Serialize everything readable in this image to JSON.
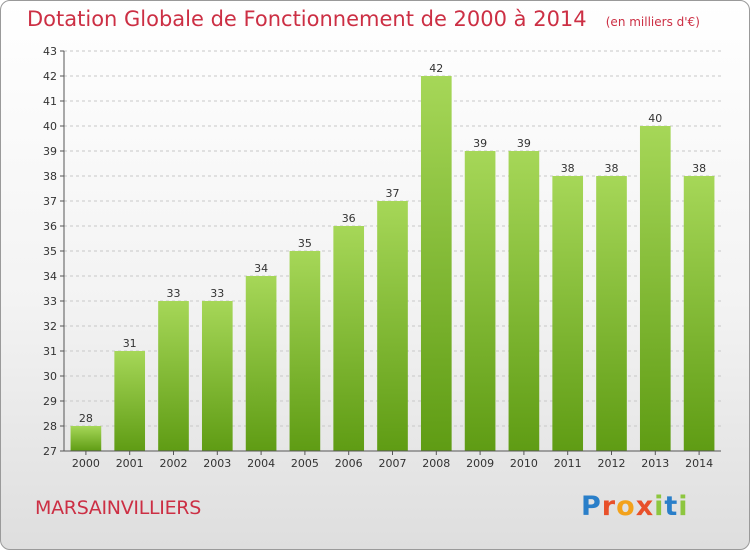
{
  "title": "Dotation Globale de Fonctionnement de 2000 à 2014",
  "unit": "(en milliers d'€)",
  "commune": "MARSAINVILLIERS",
  "brand": "Proxiti",
  "colors": {
    "title": "#cc2f44",
    "bar_top": "#a6d758",
    "bar_bottom": "#5f9c14",
    "axis": "#555555",
    "grid": "#c8c8c8"
  },
  "chart_data": {
    "type": "bar",
    "title": "Dotation Globale de Fonctionnement de 2000 à 2014",
    "xlabel": "",
    "ylabel": "",
    "categories": [
      "2000",
      "2001",
      "2002",
      "2003",
      "2004",
      "2005",
      "2006",
      "2007",
      "2008",
      "2009",
      "2010",
      "2011",
      "2012",
      "2013",
      "2014"
    ],
    "values": [
      28,
      31,
      33,
      33,
      34,
      35,
      36,
      37,
      42,
      39,
      39,
      38,
      38,
      40,
      38
    ],
    "ylim": [
      27,
      43
    ],
    "yticks": [
      27,
      28,
      29,
      30,
      31,
      32,
      33,
      34,
      35,
      36,
      37,
      38,
      39,
      40,
      41,
      42,
      43
    ],
    "grid": "horizontal dashed",
    "data_labels": true
  }
}
